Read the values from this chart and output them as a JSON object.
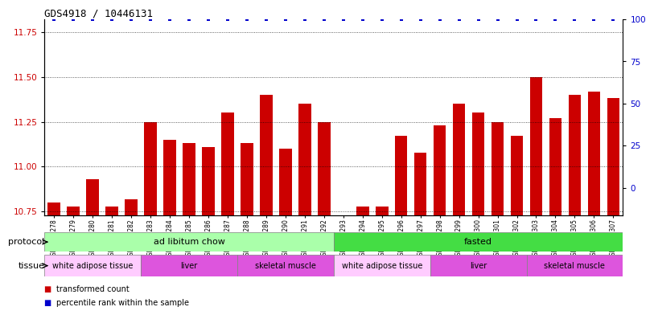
{
  "title": "GDS4918 / 10446131",
  "samples": [
    "GSM1131278",
    "GSM1131279",
    "GSM1131280",
    "GSM1131281",
    "GSM1131282",
    "GSM1131283",
    "GSM1131284",
    "GSM1131285",
    "GSM1131286",
    "GSM1131287",
    "GSM1131288",
    "GSM1131289",
    "GSM1131290",
    "GSM1131291",
    "GSM1131292",
    "GSM1131293",
    "GSM1131294",
    "GSM1131295",
    "GSM1131296",
    "GSM1131297",
    "GSM1131298",
    "GSM1131299",
    "GSM1131300",
    "GSM1131301",
    "GSM1131302",
    "GSM1131303",
    "GSM1131304",
    "GSM1131305",
    "GSM1131306",
    "GSM1131307"
  ],
  "bar_values": [
    10.8,
    10.78,
    10.93,
    10.78,
    10.82,
    11.25,
    11.15,
    11.13,
    11.11,
    11.3,
    11.13,
    11.4,
    11.1,
    11.35,
    11.25,
    10.73,
    10.78,
    10.78,
    11.17,
    11.08,
    11.23,
    11.35,
    11.3,
    11.25,
    11.17,
    11.5,
    11.27,
    11.4,
    11.42,
    11.38
  ],
  "percentile_values": [
    100,
    100,
    100,
    100,
    100,
    100,
    100,
    100,
    100,
    100,
    100,
    100,
    100,
    100,
    100,
    100,
    100,
    100,
    100,
    100,
    100,
    100,
    100,
    100,
    100,
    100,
    100,
    100,
    100,
    100
  ],
  "ymin": 10.73,
  "ymax": 11.82,
  "ylim_left": [
    10.73,
    11.82
  ],
  "ylim_right": [
    -16.25,
    100
  ],
  "yticks_left": [
    10.75,
    11.0,
    11.25,
    11.5,
    11.75
  ],
  "yticks_right": [
    0,
    25,
    50,
    75,
    100
  ],
  "bar_color": "#cc0000",
  "percentile_color": "#0000cc",
  "background_color": "#ffffff",
  "protocol_groups": [
    {
      "label": "ad libitum chow",
      "start": 0,
      "end": 14,
      "color": "#aaffaa"
    },
    {
      "label": "fasted",
      "start": 15,
      "end": 29,
      "color": "#44dd44"
    }
  ],
  "tissue_groups": [
    {
      "label": "white adipose tissue",
      "start": 0,
      "end": 4,
      "color": "#ffaaff"
    },
    {
      "label": "liver",
      "start": 5,
      "end": 9,
      "color": "#ee66ee"
    },
    {
      "label": "skeletal muscle",
      "start": 10,
      "end": 14,
      "color": "#ee66ee"
    },
    {
      "label": "white adipose tissue",
      "start": 15,
      "end": 19,
      "color": "#ffaaff"
    },
    {
      "label": "liver",
      "start": 20,
      "end": 24,
      "color": "#ee66ee"
    },
    {
      "label": "skeletal muscle",
      "start": 25,
      "end": 29,
      "color": "#ee66ee"
    }
  ],
  "legend_bar_label": "transformed count",
  "legend_pct_label": "percentile rank within the sample",
  "protocol_label": "protocol",
  "tissue_label": "tissue"
}
